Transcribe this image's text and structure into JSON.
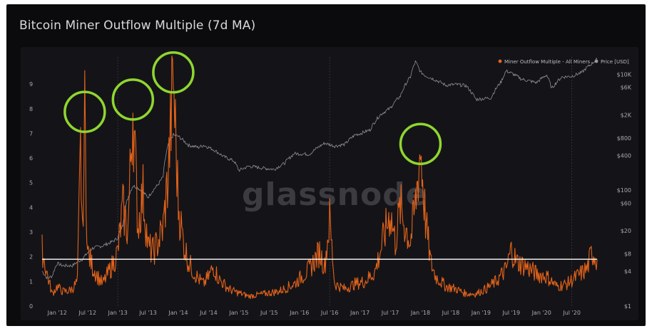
{
  "title": "Bitcoin Miner Outflow Multiple (7d MA)",
  "watermark": "glassnode",
  "legend": {
    "position": "top-right",
    "items": [
      {
        "label": "Miner Outflow Multiple - All Miners",
        "color": "#e8641b"
      },
      {
        "label": "Price [USD]",
        "color": "#9a9a9e"
      }
    ]
  },
  "colors": {
    "outflow": "#e2621a",
    "price": "#8f8f93",
    "threshold": "#ffffff",
    "highlight": "#8fd630"
  },
  "chart_data": {
    "type": "line",
    "x_labels": [
      "Jan '12",
      "Jul '12",
      "Jan '13",
      "Jul '13",
      "Jan '14",
      "Jul '14",
      "Jan '15",
      "Jul '15",
      "Jan '16",
      "Jul '16",
      "Jan '17",
      "Jul '17",
      "Jan '18",
      "Jul '18",
      "Jan '19",
      "Jul '19",
      "Jan '20",
      "Jul '20"
    ],
    "x_range": [
      "2011-10",
      "2020-12"
    ],
    "y_left": {
      "ticks": [
        0,
        1,
        2,
        3,
        4,
        5,
        6,
        7,
        8,
        9
      ],
      "range": [
        0,
        10.1
      ]
    },
    "y_right": {
      "scale": "log",
      "tick_labels": [
        "$1",
        "$4",
        "$8",
        "$20",
        "$60",
        "$100",
        "$400",
        "$800",
        "$2K",
        "$6K",
        "$10K"
      ],
      "tick_values": [
        1,
        4,
        8,
        20,
        60,
        100,
        400,
        800,
        2000,
        6000,
        10000
      ],
      "range": [
        1,
        20000
      ]
    },
    "threshold_line": 1.9,
    "series": [
      {
        "name": "Miner Outflow Multiple - All Miners",
        "axis": "left",
        "points": [
          [
            "2011-10",
            2.3
          ],
          [
            "2011-11",
            1.3
          ],
          [
            "2011-12",
            0.5
          ],
          [
            "2012-01",
            0.8
          ],
          [
            "2012-02",
            0.6
          ],
          [
            "2012-03",
            0.6
          ],
          [
            "2012-04",
            0.7
          ],
          [
            "2012-05",
            1.0
          ],
          [
            "2012-05-20",
            6.3
          ],
          [
            "2012-06",
            2.8
          ],
          [
            "2012-06-15",
            7.7
          ],
          [
            "2012-07",
            2.2
          ],
          [
            "2012-08",
            1.6
          ],
          [
            "2012-09",
            1.2
          ],
          [
            "2012-10",
            0.9
          ],
          [
            "2012-11",
            1.3
          ],
          [
            "2012-12",
            1.7
          ],
          [
            "2013-01",
            2.2
          ],
          [
            "2013-02",
            4.0
          ],
          [
            "2013-03",
            3.0
          ],
          [
            "2013-04",
            8.2
          ],
          [
            "2013-05",
            3.2
          ],
          [
            "2013-06",
            4.6
          ],
          [
            "2013-07",
            2.4
          ],
          [
            "2013-08",
            2.2
          ],
          [
            "2013-09",
            2.6
          ],
          [
            "2013-10",
            3.2
          ],
          [
            "2013-11",
            5.3
          ],
          [
            "2013-12",
            9.3
          ],
          [
            "2014-01",
            4.1
          ],
          [
            "2014-02",
            2.6
          ],
          [
            "2014-03",
            1.8
          ],
          [
            "2014-04",
            1.4
          ],
          [
            "2014-05",
            1.1
          ],
          [
            "2014-06",
            0.9
          ],
          [
            "2014-07",
            1.2
          ],
          [
            "2014-08",
            1.6
          ],
          [
            "2014-09",
            1.1
          ],
          [
            "2014-10",
            0.9
          ],
          [
            "2014-11",
            0.7
          ],
          [
            "2014-12",
            0.6
          ],
          [
            "2015-03",
            0.4
          ],
          [
            "2015-06",
            0.5
          ],
          [
            "2015-09",
            0.6
          ],
          [
            "2015-12",
            0.9
          ],
          [
            "2016-01",
            1.1
          ],
          [
            "2016-03",
            1.5
          ],
          [
            "2016-05",
            2.2
          ],
          [
            "2016-06",
            1.6
          ],
          [
            "2016-07",
            3.5
          ],
          [
            "2016-08",
            0.9
          ],
          [
            "2016-10",
            0.7
          ],
          [
            "2016-12",
            0.9
          ],
          [
            "2017-02",
            1.0
          ],
          [
            "2017-04",
            1.4
          ],
          [
            "2017-06",
            3.0
          ],
          [
            "2017-07",
            3.8
          ],
          [
            "2017-08",
            2.6
          ],
          [
            "2017-09",
            4.0
          ],
          [
            "2017-10",
            3.2
          ],
          [
            "2017-11",
            2.6
          ],
          [
            "2017-12",
            4.1
          ],
          [
            "2018-01",
            6.4
          ],
          [
            "2018-02",
            3.5
          ],
          [
            "2018-03",
            1.8
          ],
          [
            "2018-04",
            1.2
          ],
          [
            "2018-06",
            0.8
          ],
          [
            "2018-08",
            0.7
          ],
          [
            "2018-10",
            0.5
          ],
          [
            "2018-12",
            0.5
          ],
          [
            "2019-02",
            0.7
          ],
          [
            "2019-04",
            1.0
          ],
          [
            "2019-06",
            1.5
          ],
          [
            "2019-07",
            2.3
          ],
          [
            "2019-08",
            1.8
          ],
          [
            "2019-10",
            1.6
          ],
          [
            "2019-12",
            1.3
          ],
          [
            "2020-02",
            1.2
          ],
          [
            "2020-04",
            0.8
          ],
          [
            "2020-06",
            0.9
          ],
          [
            "2020-08",
            1.2
          ],
          [
            "2020-10",
            1.5
          ],
          [
            "2020-11",
            2.2
          ],
          [
            "2020-12",
            1.9
          ]
        ]
      },
      {
        "name": "Price [USD]",
        "axis": "right",
        "points": [
          [
            "2011-10",
            4
          ],
          [
            "2011-11",
            3
          ],
          [
            "2011-12",
            3.3
          ],
          [
            "2012-01",
            5.5
          ],
          [
            "2012-02",
            5
          ],
          [
            "2012-04",
            5
          ],
          [
            "2012-06",
            6.5
          ],
          [
            "2012-08",
            10
          ],
          [
            "2012-10",
            11
          ],
          [
            "2012-12",
            13
          ],
          [
            "2013-01",
            15
          ],
          [
            "2013-02",
            25
          ],
          [
            "2013-04",
            120
          ],
          [
            "2013-05",
            110
          ],
          [
            "2013-07",
            75
          ],
          [
            "2013-09",
            125
          ],
          [
            "2013-10",
            170
          ],
          [
            "2013-11",
            600
          ],
          [
            "2013-12",
            900
          ],
          [
            "2014-01",
            850
          ],
          [
            "2014-03",
            600
          ],
          [
            "2014-05",
            550
          ],
          [
            "2014-06",
            600
          ],
          [
            "2014-08",
            500
          ],
          [
            "2014-10",
            380
          ],
          [
            "2014-12",
            320
          ],
          [
            "2015-01",
            220
          ],
          [
            "2015-03",
            260
          ],
          [
            "2015-06",
            240
          ],
          [
            "2015-08",
            230
          ],
          [
            "2015-10",
            290
          ],
          [
            "2015-12",
            430
          ],
          [
            "2016-03",
            420
          ],
          [
            "2016-06",
            650
          ],
          [
            "2016-08",
            580
          ],
          [
            "2016-10",
            620
          ],
          [
            "2016-12",
            900
          ],
          [
            "2017-01",
            950
          ],
          [
            "2017-03",
            1100
          ],
          [
            "2017-05",
            2000
          ],
          [
            "2017-07",
            2600
          ],
          [
            "2017-09",
            4200
          ],
          [
            "2017-11",
            9000
          ],
          [
            "2017-12",
            16500
          ],
          [
            "2018-01",
            11000
          ],
          [
            "2018-02",
            9500
          ],
          [
            "2018-04",
            8000
          ],
          [
            "2018-06",
            6500
          ],
          [
            "2018-08",
            6700
          ],
          [
            "2018-10",
            6400
          ],
          [
            "2018-12",
            3700
          ],
          [
            "2019-03",
            3950
          ],
          [
            "2019-05",
            7500
          ],
          [
            "2019-06",
            11500
          ],
          [
            "2019-07",
            10500
          ],
          [
            "2019-09",
            8300
          ],
          [
            "2019-12",
            7200
          ],
          [
            "2020-02",
            9800
          ],
          [
            "2020-03",
            5700
          ],
          [
            "2020-05",
            9000
          ],
          [
            "2020-07",
            9300
          ],
          [
            "2020-09",
            10800
          ],
          [
            "2020-11",
            15500
          ],
          [
            "2020-12",
            18500
          ]
        ]
      }
    ],
    "highlighted_peaks": [
      {
        "x": "2012-06-15",
        "y": 7.7
      },
      {
        "x": "2013-04",
        "y": 8.2
      },
      {
        "x": "2013-12",
        "y": 9.3
      },
      {
        "x": "2018-01",
        "y": 6.4
      }
    ]
  }
}
